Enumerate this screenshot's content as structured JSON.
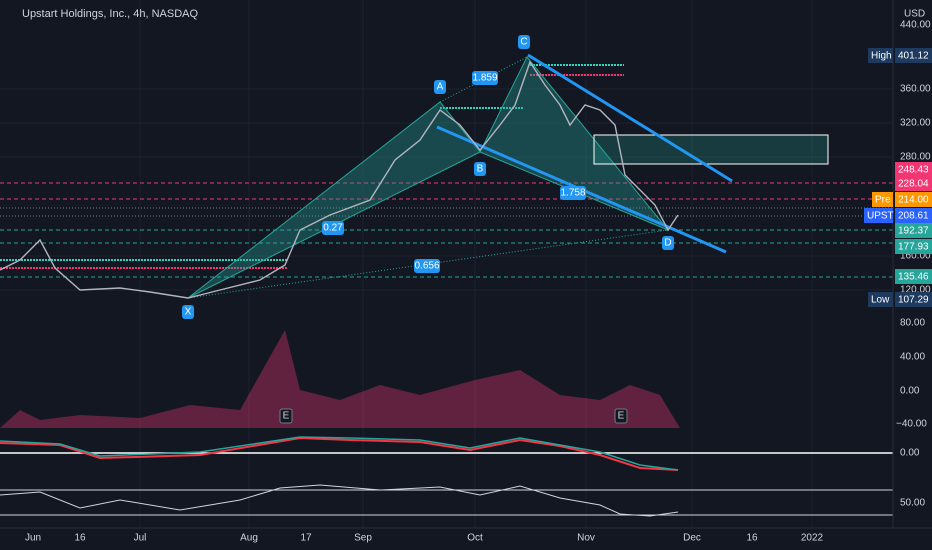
{
  "header": {
    "title": "Upstart Holdings, Inc., 4h, NASDAQ",
    "currency": "USD"
  },
  "price_axis": [
    "440.00",
    "360.00",
    "320.00",
    "280.00",
    "160.00",
    "120.00"
  ],
  "volume_axis": [
    "80.00",
    "40.00",
    "0.00",
    "−40.00"
  ],
  "macd_axis": [
    "0.00"
  ],
  "rsi_axis": [
    "50.00"
  ],
  "badges": [
    {
      "label": "High",
      "value": "401.12"
    },
    {
      "value": "248.43"
    },
    {
      "value": "228.04"
    },
    {
      "label": "Pre",
      "value": "214.00"
    },
    {
      "label": "UPST",
      "value": "208.61"
    },
    {
      "value": "192.37"
    },
    {
      "value": "177.93"
    },
    {
      "value": "135.46"
    },
    {
      "label": "Low",
      "value": "107.29"
    }
  ],
  "time_axis": [
    "Jun",
    "16",
    "Jul",
    "Aug",
    "17",
    "Sep",
    "Oct",
    "Nov",
    "Dec",
    "16",
    "2022"
  ],
  "pattern_points": [
    "X",
    "A",
    "B",
    "C",
    "D"
  ],
  "ratios": [
    "1.859",
    "0.27",
    "1.758",
    "0.656"
  ],
  "events": [
    "E",
    "E"
  ]
}
